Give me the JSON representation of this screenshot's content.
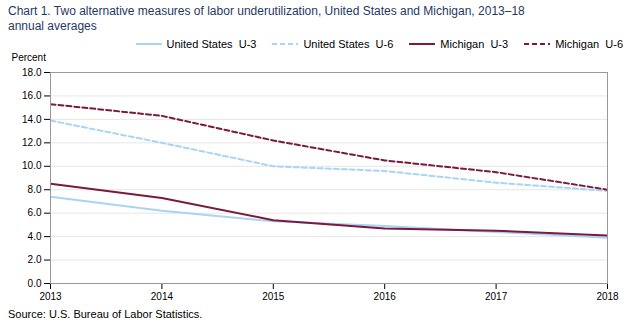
{
  "chart_data": {
    "type": "line",
    "title": "Chart 1. Two alternative measures of labor underutilization, United States and Michigan, 2013–18",
    "subtitle": "annual averages",
    "y_label": "Percent",
    "source": "Source: U.S. Bureau of Labor Statistics.",
    "x": [
      2013,
      2014,
      2015,
      2016,
      2017,
      2018
    ],
    "xlim": [
      2013,
      2018
    ],
    "xticks": [
      2013,
      2014,
      2015,
      2016,
      2017,
      2018
    ],
    "ylim": [
      0.0,
      18.0
    ],
    "yticks": [
      {
        "value": 0,
        "label": "0.0"
      },
      {
        "value": 2,
        "label": "2.0"
      },
      {
        "value": 4,
        "label": "4.0"
      },
      {
        "value": 6,
        "label": "6.0"
      },
      {
        "value": 8,
        "label": "8.0"
      },
      {
        "value": 10,
        "label": "10.0"
      },
      {
        "value": 12,
        "label": "12.0"
      },
      {
        "value": 14,
        "label": "14.0"
      },
      {
        "value": 16,
        "label": "16.0"
      },
      {
        "value": 18,
        "label": "18.0"
      }
    ],
    "grid": true,
    "legend": "upper right",
    "series": [
      {
        "name": "United States  U-3",
        "color": "#a8d4f5",
        "line_style": "solid",
        "values": [
          7.4,
          6.2,
          5.3,
          4.9,
          4.4,
          3.9
        ]
      },
      {
        "name": "United States  U-6",
        "color": "#a8d4f5",
        "line_style": "dashed",
        "values": [
          13.9,
          12.0,
          10.0,
          9.6,
          8.6,
          7.9
        ]
      },
      {
        "name": "Michigan  U-3",
        "color": "#7b1a3e",
        "line_style": "solid",
        "values": [
          8.5,
          7.3,
          5.4,
          4.7,
          4.5,
          4.1
        ]
      },
      {
        "name": "Michigan  U-6",
        "color": "#7b1a3e",
        "line_style": "dashed",
        "values": [
          15.3,
          14.3,
          12.2,
          10.5,
          9.5,
          8.0
        ]
      }
    ],
    "title_color": "#1f3864"
  }
}
